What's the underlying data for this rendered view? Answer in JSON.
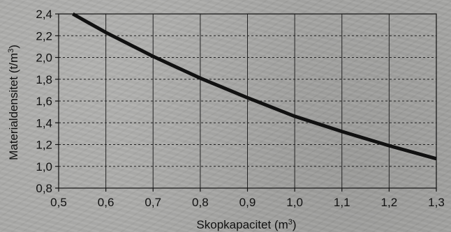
{
  "chart_data": {
    "type": "line",
    "title": "",
    "xlabel": "Skopkapacitet (m",
    "xlabel_sup": "3",
    "xlabel_end": ")",
    "ylabel": "Materialdensitet (t/m",
    "ylabel_sup": "3",
    "ylabel_end": ")",
    "xlim": [
      0.5,
      1.3
    ],
    "ylim": [
      0.8,
      2.4
    ],
    "x_ticks": [
      0.5,
      0.6,
      0.7,
      0.8,
      0.9,
      1.0,
      1.1,
      1.2,
      1.3
    ],
    "x_tick_labels": [
      "0,5",
      "0,6",
      "0,7",
      "0,8",
      "0,9",
      "1,0",
      "1,1",
      "1,2",
      "1,3"
    ],
    "y_ticks": [
      0.8,
      1.0,
      1.2,
      1.4,
      1.6,
      1.8,
      2.0,
      2.2,
      2.4
    ],
    "y_tick_labels": [
      "0,8",
      "1,0",
      "1,2",
      "1,4",
      "1,6",
      "1,8",
      "2,0",
      "2,2",
      "2,4"
    ],
    "grid": true,
    "series": [
      {
        "x": [
          0.53,
          0.6,
          0.7,
          0.8,
          0.9,
          1.0,
          1.1,
          1.2,
          1.3
        ],
        "y": [
          2.4,
          2.23,
          2.01,
          1.81,
          1.63,
          1.46,
          1.32,
          1.19,
          1.07
        ]
      }
    ]
  }
}
